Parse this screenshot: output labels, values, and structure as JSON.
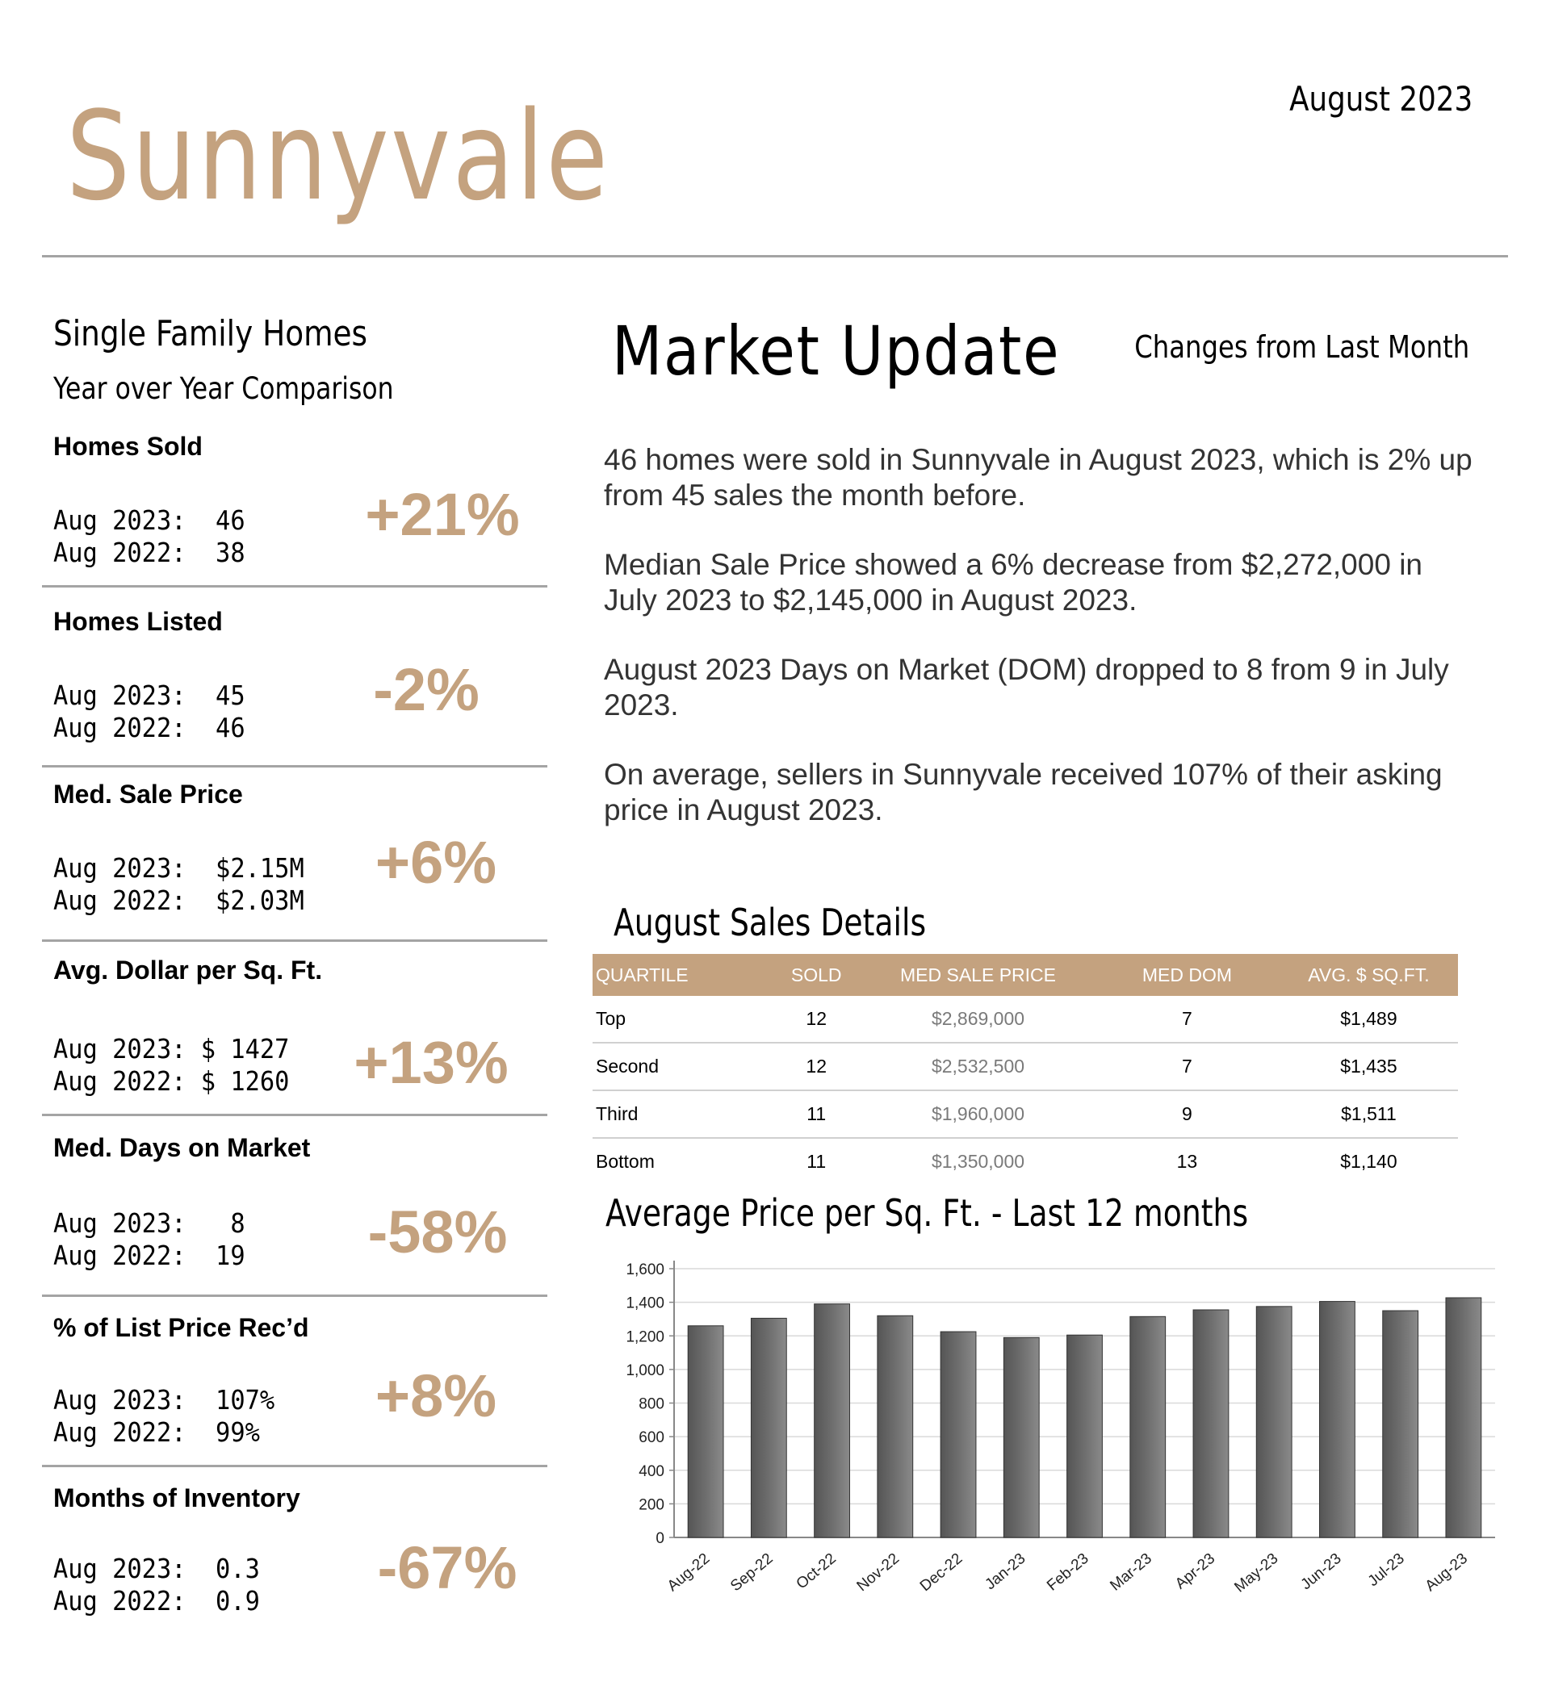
{
  "header": {
    "city": "Sunnyvale",
    "report_date": "August 2023"
  },
  "left": {
    "title": "Single Family Homes",
    "subtitle": "Year over Year Comparison",
    "metrics": [
      {
        "label": "Homes Sold",
        "line1": "Aug 2023:  46",
        "line2": "Aug 2022:  38",
        "change": "+21%"
      },
      {
        "label": "Homes Listed",
        "line1": "Aug 2023:  45",
        "line2": "Aug 2022:  46",
        "change": "-2%"
      },
      {
        "label": "Med. Sale Price",
        "line1": "Aug 2023:  $2.15M",
        "line2": "Aug 2022:  $2.03M",
        "change": "+6%"
      },
      {
        "label": "Avg. Dollar per Sq. Ft.",
        "line1": "Aug 2023: $ 1427",
        "line2": "Aug 2022: $ 1260",
        "change": "+13%"
      },
      {
        "label": "Med. Days on Market",
        "line1": "Aug 2023:   8",
        "line2": "Aug 2022:  19",
        "change": "-58%"
      },
      {
        "label": "% of List Price Rec’d",
        "line1": "Aug 2023:  107%",
        "line2": "Aug 2022:  99%",
        "change": "+8%"
      },
      {
        "label": "Months of Inventory",
        "line1": "Aug 2023:  0.3",
        "line2": "Aug 2022:  0.9",
        "change": "-67%"
      }
    ]
  },
  "market": {
    "title": "Market Update",
    "changes_label": "Changes from Last Month",
    "paragraphs": [
      "46 homes were sold in Sunnyvale in August 2023, which is 2% up from 45 sales the month before.",
      "Median Sale Price showed a 6% decrease from $2,272,000 in July 2023 to $2,145,000 in August 2023.",
      "August 2023 Days on Market (DOM) dropped to 8 from 9 in July 2023.",
      "On average, sellers in Sunnyvale received 107% of their asking price in August 2023."
    ]
  },
  "details": {
    "title": "August Sales Details",
    "headers": [
      "QUARTILE",
      "SOLD",
      "MED SALE PRICE",
      "MED DOM",
      "AVG. $ SQ.FT."
    ],
    "rows": [
      [
        "Top",
        "12",
        "$2,869,000",
        "7",
        "$1,489"
      ],
      [
        "Second",
        "12",
        "$2,532,500",
        "7",
        "$1,435"
      ],
      [
        "Third",
        "11",
        "$1,960,000",
        "9",
        "$1,511"
      ],
      [
        "Bottom",
        "11",
        "$1,350,000",
        "13",
        "$1,140"
      ]
    ]
  },
  "chart_data": {
    "type": "bar",
    "title": "Average Price per Sq. Ft. - Last 12 months",
    "categories": [
      "Aug-22",
      "Sep-22",
      "Oct-22",
      "Nov-22",
      "Dec-22",
      "Jan-23",
      "Feb-23",
      "Mar-23",
      "Apr-23",
      "May-23",
      "Jun-23",
      "Jul-23",
      "Aug-23"
    ],
    "values": [
      1260,
      1305,
      1390,
      1320,
      1225,
      1190,
      1205,
      1315,
      1355,
      1375,
      1405,
      1350,
      1427
    ],
    "ylim": [
      0,
      1600
    ],
    "yticks": [
      "0",
      "200",
      "400",
      "600",
      "800",
      "1,000",
      "1,200",
      "1,400",
      "1,600"
    ],
    "grid": true,
    "colors": {
      "bar": "#6e6e6e"
    }
  }
}
